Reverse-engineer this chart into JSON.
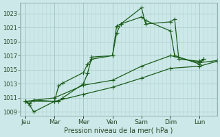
{
  "xlabel": "Pression niveau de la mer( hPa )",
  "background_color": "#cce8e8",
  "grid_color_major": "#a8c8c8",
  "grid_color_minor": "#b8d8d8",
  "line_color": "#1a5c1a",
  "ylim": [
    1008.5,
    1024.5
  ],
  "yticks": [
    1009,
    1011,
    1013,
    1015,
    1017,
    1019,
    1021,
    1023
  ],
  "days": [
    "Jeu",
    "Mar",
    "Mer",
    "Ven",
    "Sam",
    "Dim",
    "Lun"
  ],
  "day_x": [
    0,
    28,
    56,
    84,
    112,
    140,
    168
  ],
  "xlim": [
    -5,
    185
  ],
  "series1": {
    "x": [
      0,
      4,
      8,
      28,
      32,
      36,
      56,
      60,
      64,
      84,
      88,
      92,
      112,
      116,
      140,
      144,
      148,
      168,
      172
    ],
    "y": [
      1010.5,
      1010.2,
      1010.7,
      1010.5,
      1012.7,
      1013.1,
      1014.6,
      1015.8,
      1016.5,
      1017.0,
      1021.2,
      1021.5,
      1023.8,
      1021.5,
      1021.8,
      1022.2,
      1016.5,
      1016.2,
      1016.5
    ]
  },
  "series2": {
    "x": [
      0,
      4,
      8,
      28,
      32,
      36,
      56,
      60,
      64,
      84,
      88,
      92,
      112,
      116,
      140,
      144,
      168,
      172
    ],
    "y": [
      1010.5,
      1010.0,
      1009.0,
      1010.5,
      1010.5,
      1011.0,
      1013.0,
      1014.5,
      1016.8,
      1017.0,
      1020.2,
      1021.5,
      1022.5,
      1022.0,
      1020.5,
      1017.0,
      1015.8,
      1016.5
    ]
  },
  "series3": {
    "x": [
      0,
      28,
      56,
      84,
      112,
      140,
      168,
      185
    ],
    "y": [
      1010.5,
      1011.0,
      1012.8,
      1013.5,
      1015.5,
      1017.0,
      1016.0,
      1016.3
    ]
  },
  "series4": {
    "x": [
      0,
      28,
      56,
      84,
      112,
      140,
      168,
      185
    ],
    "y": [
      1010.5,
      1010.5,
      1011.5,
      1012.5,
      1013.8,
      1015.2,
      1015.5,
      1016.2
    ]
  }
}
